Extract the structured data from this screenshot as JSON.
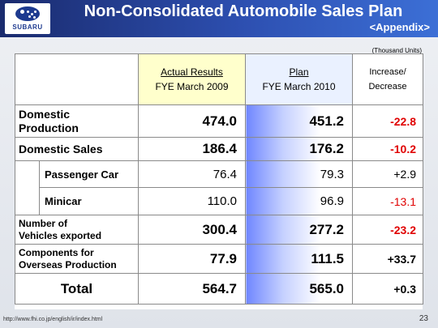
{
  "header": {
    "brand": "SUBARU",
    "title": "Non-Consolidated Automobile Sales Plan",
    "subtitle": "<Appendix>"
  },
  "units_note": "(Thousand Units)",
  "columns": {
    "actual_line1": "Actual Results",
    "actual_line2": "FYE March 2009",
    "plan_line1": "Plan",
    "plan_line2": "FYE March 2010",
    "inc_line1": "Increase/",
    "inc_line2": "Decrease"
  },
  "rows": [
    {
      "label_line1": "Domestic",
      "label_line2": "Production",
      "actual": "474.0",
      "plan": "451.2",
      "change": "-22.8"
    },
    {
      "label": "Domestic Sales",
      "actual": "186.4",
      "plan": "176.2",
      "change": "-10.2"
    },
    {
      "label": "Passenger Car",
      "actual": "76.4",
      "plan": "79.3",
      "change": "+2.9"
    },
    {
      "label": "Minicar",
      "actual": "110.0",
      "plan": "96.9",
      "change": "-13.1"
    },
    {
      "label_line1": "Number of",
      "label_line2": "Vehicles exported",
      "actual": "300.4",
      "plan": "277.2",
      "change": "-23.2"
    },
    {
      "label_line1": "Components for",
      "label_line2": "Overseas Production",
      "actual": "77.9",
      "plan": "111.5",
      "change": "+33.7"
    },
    {
      "label": "Total",
      "actual": "564.7",
      "plan": "565.0",
      "change": "+0.3"
    }
  ],
  "footer": {
    "url": "http://www.fhi.co.jp/english/ir/index.html",
    "page": "23"
  },
  "colors": {
    "header_dark": "#1a2b6e",
    "header_light": "#3c6fd6",
    "negative": "#e00000",
    "actual_header_bg": "#ffffcc"
  }
}
